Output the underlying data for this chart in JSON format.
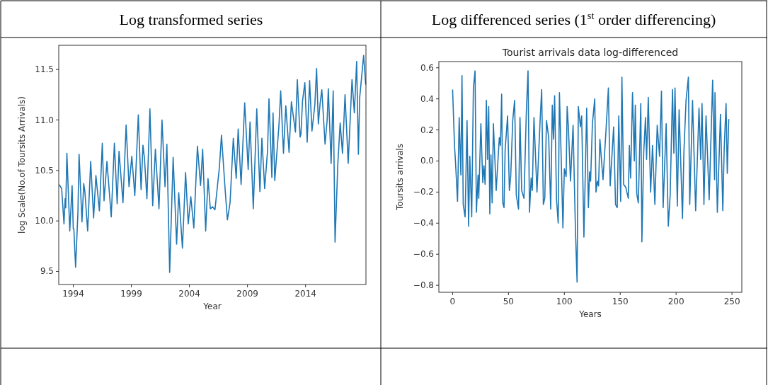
{
  "chart_data": [
    {
      "type": "line",
      "annotations": [
        "Log transformed series"
      ],
      "xlabel": "Year",
      "ylabel": "log Scale(No.of Toursits Arrivals)",
      "xlim": [
        1992.75,
        2019.2
      ],
      "ylim": [
        9.37,
        11.74
      ],
      "xticks": [
        1994,
        1999,
        2004,
        2009,
        2014
      ],
      "yticks": [
        9.5,
        {
          "value": 10,
          "label": "10.0"
        },
        10.5,
        {
          "value": 11,
          "label": "11.0"
        },
        11.5
      ],
      "grid": false,
      "series": [
        {
          "color": "#1f77b4",
          "x": [
            1992.8,
            1993.0,
            1993.2,
            1993.3,
            1993.35,
            1993.45,
            1993.7,
            1993.9,
            1994.0,
            1994.05,
            1994.2,
            1994.4,
            1994.5,
            1994.75,
            1994.9,
            1995.0,
            1995.24,
            1995.5,
            1995.75,
            1995.95,
            1996.25,
            1996.5,
            1996.65,
            1996.9,
            1997.27,
            1997.54,
            1997.78,
            1997.94,
            1998.28,
            1998.55,
            1998.8,
            1999.04,
            1999.3,
            1999.6,
            1999.84,
            2000.0,
            2000.13,
            2000.34,
            2000.6,
            2000.84,
            2001.07,
            2001.38,
            2001.64,
            2001.9,
            2002.06,
            2002.3,
            2002.6,
            2002.9,
            2003.08,
            2003.4,
            2003.67,
            2003.9,
            2004.12,
            2004.38,
            2004.69,
            2004.96,
            2005.14,
            2005.4,
            2005.6,
            2005.8,
            2006.0,
            2006.2,
            2006.58,
            2006.76,
            2007.07,
            2007.27,
            2007.5,
            2007.78,
            2008.03,
            2008.2,
            2008.45,
            2008.76,
            2009.06,
            2009.22,
            2009.5,
            2009.8,
            2010.07,
            2010.24,
            2010.48,
            2010.73,
            2010.85,
            2011.1,
            2011.2,
            2011.35,
            2011.7,
            2011.86,
            2012.1,
            2012.3,
            2012.58,
            2012.78,
            2013.13,
            2013.29,
            2013.53,
            2013.6,
            2013.74,
            2013.94,
            2014.14,
            2014.35,
            2014.55,
            2014.8,
            2014.95,
            2015.1,
            2015.25,
            2015.4,
            2015.68,
            2015.86,
            2015.96,
            2016.2,
            2016.38,
            2016.54,
            2016.78,
            2016.98,
            2017.18,
            2017.4,
            2017.67,
            2018.0,
            2018.2,
            2018.4,
            2018.55,
            2018.66,
            2019.0,
            2019.18
          ],
          "values": [
            10.36,
            10.32,
            9.97,
            10.22,
            10.13,
            10.67,
            9.9,
            10.35,
            9.92,
            9.92,
            9.54,
            10.08,
            10.66,
            9.99,
            10.37,
            10.29,
            9.9,
            10.59,
            10.03,
            10.45,
            10.1,
            10.77,
            10.2,
            10.59,
            10.04,
            10.77,
            10.17,
            10.69,
            10.18,
            10.95,
            10.34,
            10.64,
            10.25,
            11.05,
            10.31,
            10.75,
            10.62,
            10.22,
            11.11,
            10.15,
            10.71,
            10.12,
            11.0,
            10.34,
            10.76,
            9.49,
            10.63,
            9.77,
            10.28,
            9.73,
            10.48,
            9.97,
            10.24,
            9.93,
            10.74,
            10.35,
            10.71,
            9.9,
            10.42,
            10.12,
            10.14,
            10.11,
            10.53,
            10.85,
            10.32,
            10.01,
            10.18,
            10.82,
            10.42,
            10.91,
            10.36,
            11.17,
            10.51,
            10.98,
            10.12,
            11.11,
            10.29,
            10.82,
            10.32,
            10.7,
            11.21,
            10.43,
            11.07,
            10.4,
            10.93,
            11.29,
            10.67,
            11.14,
            10.68,
            11.18,
            10.88,
            11.4,
            10.83,
            10.86,
            11.19,
            11.37,
            10.78,
            11.39,
            10.89,
            11.15,
            11.51,
            10.96,
            11.16,
            11.3,
            10.76,
            11.0,
            11.31,
            10.57,
            11.29,
            9.79,
            10.57,
            10.97,
            10.67,
            11.25,
            10.57,
            11.4,
            11.07,
            11.58,
            10.66,
            11.22,
            11.64,
            11.35
          ]
        }
      ]
    },
    {
      "type": "line",
      "annotations": [
        "Log differenced series (1$^{st}$ order differencing)"
      ],
      "title": "Tourist arrivals data log-differenced",
      "xlabel": "Years",
      "ylabel": "Toursits arrivals",
      "xlim": [
        -12.3,
        258.8
      ],
      "ylim": [
        -0.845,
        0.64
      ],
      "xticks": [
        0,
        50,
        100,
        150,
        200,
        250
      ],
      "yticks": [
        {
          "value": 0.6,
          "label": "0.6"
        },
        {
          "value": 0.4,
          "label": "0.4"
        },
        {
          "value": 0.2,
          "label": "0.2"
        },
        {
          "value": 0,
          "label": "0.0"
        },
        {
          "value": -0.2,
          "label": "−0.2"
        },
        {
          "value": -0.4,
          "label": "−0.4"
        },
        {
          "value": -0.6,
          "label": "−0.6"
        },
        {
          "value": -0.8,
          "label": "−0.8"
        }
      ],
      "grid": false,
      "series": [
        {
          "color": "#1f77b4",
          "x": [
            0,
            1.7,
            2.7,
            4.4,
            5.9,
            7.4,
            8.4,
            9.5,
            11.2,
            12.9,
            14.3,
            15.4,
            17.1,
            18.6,
            20.1,
            21.3,
            22.8,
            23.4,
            25.3,
            27,
            28,
            29.1,
            30.2,
            31.2,
            32.3,
            33.3,
            34.3,
            35.4,
            36.5,
            39,
            41.8,
            42.8,
            43.9,
            44.9,
            46,
            47,
            49.2,
            50.8,
            52,
            53.8,
            55.5,
            57,
            59,
            60.3,
            61.8,
            63.9,
            66,
            67.5,
            68.8,
            70.3,
            71.3,
            72.8,
            75.5,
            78.3,
            79.7,
            81.2,
            82.5,
            84,
            86,
            87.8,
            89.2,
            90.3,
            91.3,
            93,
            94.5,
            95.6,
            97,
            98.7,
            100,
            101.6,
            102.5,
            103.6,
            105.5,
            107.8,
            109.9,
            111.4,
            112.5,
            114.4,
            115.5,
            117.5,
            120,
            121.5,
            122.6,
            123.5,
            125.1,
            127.2,
            128.3,
            129.5,
            130.6,
            131.8,
            134.6,
            137.3,
            139.4,
            141,
            144.1,
            145.8,
            147.3,
            148.7,
            150.4,
            151.5,
            153,
            155,
            157.2,
            158.2,
            159.3,
            161,
            162.6,
            163.5,
            164.8,
            166.2,
            168.4,
            169.4,
            171,
            172.6,
            173.6,
            175.1,
            177.2,
            178.9,
            181,
            183.1,
            185.2,
            186.9,
            188.4,
            191.1,
            193,
            194.7,
            196.8,
            198,
            199,
            201.1,
            202.7,
            205.7,
            207,
            208.9,
            211,
            212.2,
            214.7,
            217.5,
            220.5,
            222,
            223.2,
            224.9,
            226.8,
            229.6,
            232.7,
            234.4,
            234.8,
            236.9,
            239.7,
            241.8,
            243,
            244.7,
            245.8,
            247.1
          ],
          "values": [
            0.46,
            0.1,
            -0.02,
            -0.26,
            0.28,
            -0.09,
            0.55,
            -0.28,
            -0.36,
            0.26,
            -0.42,
            0.03,
            -0.36,
            0.47,
            0.58,
            -0.33,
            -0.09,
            -0.24,
            0.24,
            -0.14,
            -0.03,
            -0.15,
            0.39,
            0.01,
            0.35,
            -0.34,
            0.04,
            -0.27,
            0.24,
            -0.19,
            0.15,
            0.1,
            0.43,
            -0.27,
            -0.3,
            0.07,
            0.29,
            -0.19,
            -0.1,
            0.26,
            0.39,
            -0.22,
            -0.31,
            0.28,
            -0.19,
            -0.24,
            0.32,
            0.58,
            -0.33,
            -0.11,
            -0.19,
            0.28,
            -0.2,
            0.26,
            0.46,
            -0.28,
            -0.24,
            0.26,
            0.15,
            -0.31,
            0.36,
            0.14,
            0.42,
            -0.25,
            -0.4,
            0.44,
            0.07,
            -0.43,
            -0.05,
            -0.1,
            0.35,
            0.22,
            -0.13,
            0.23,
            -0.44,
            -0.78,
            0.35,
            0.22,
            0.29,
            -0.49,
            0.34,
            -0.3,
            -0.07,
            -0.13,
            0.24,
            0.4,
            -0.2,
            -0.13,
            -0.16,
            0.14,
            -0.12,
            0.2,
            0.47,
            -0.16,
            0.22,
            -0.28,
            -0.3,
            0.29,
            -0.26,
            0.54,
            -0.15,
            -0.17,
            -0.24,
            0.1,
            -0.11,
            0.44,
            0,
            0.36,
            -0.21,
            -0.27,
            0.37,
            -0.52,
            0.05,
            0.28,
            0.01,
            0.41,
            -0.2,
            0.1,
            -0.28,
            0.23,
            0.03,
            0.45,
            -0.3,
            0.24,
            -0.42,
            -0.22,
            0.46,
            0.05,
            0.47,
            -0.29,
            0.33,
            -0.37,
            0.06,
            0.39,
            0.54,
            -0.28,
            0.39,
            -0.32,
            0.34,
            0.01,
            0.37,
            -0.28,
            0.29,
            -0.25,
            0.52,
            -0.12,
            0.44,
            -0.33,
            0.3,
            -0.32,
            0.07,
            0.37,
            -0.08,
            0.27
          ]
        }
      ]
    }
  ]
}
